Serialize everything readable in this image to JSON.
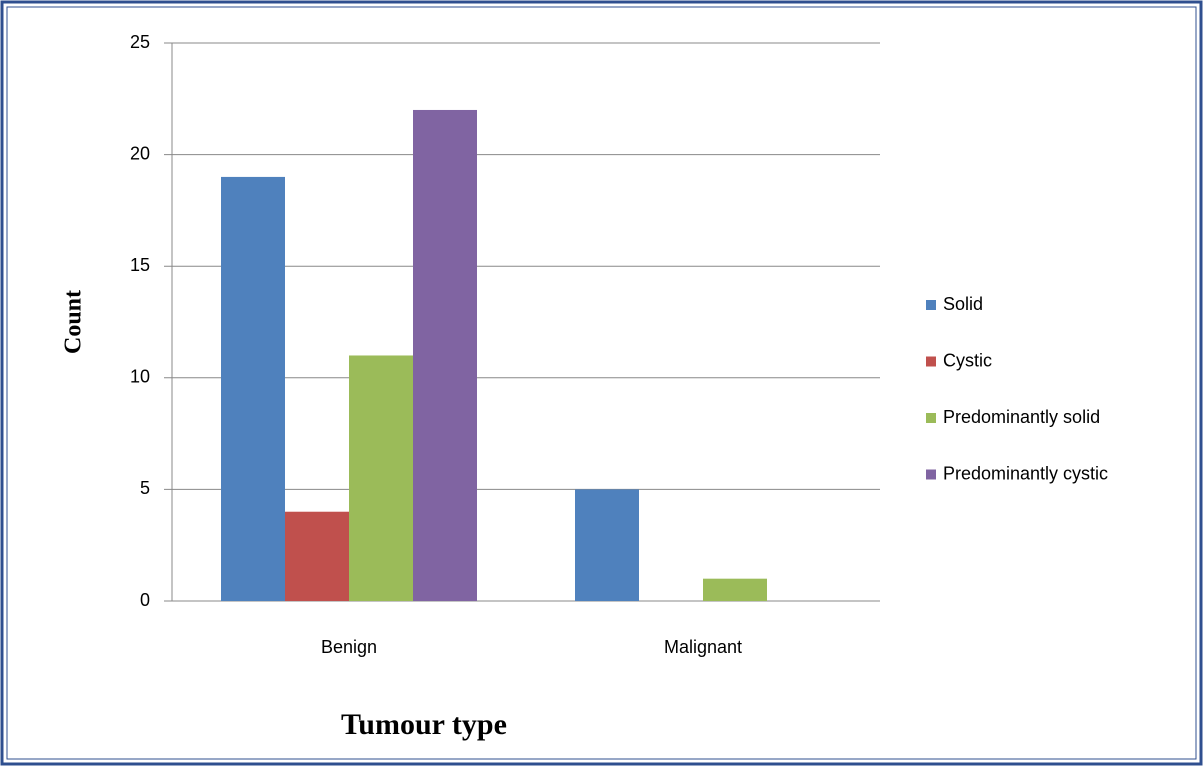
{
  "chart_data": {
    "type": "bar",
    "categories": [
      "Benign",
      "Malignant"
    ],
    "series": [
      {
        "name": "Solid",
        "color": "#4f81bd",
        "values": [
          19,
          5
        ]
      },
      {
        "name": "Cystic",
        "color": "#c0504d",
        "values": [
          4,
          0
        ]
      },
      {
        "name": "Predominantly solid",
        "color": "#9bbb59",
        "values": [
          11,
          1
        ]
      },
      {
        "name": "Predominantly cystic",
        "color": "#8064a2",
        "values": [
          22,
          0
        ]
      }
    ],
    "xlabel": "Tumour type",
    "ylabel": "Count",
    "ylim": [
      0,
      25
    ],
    "yticks": [
      0,
      5,
      10,
      15,
      20,
      25
    ],
    "grid": true,
    "legend": "right"
  }
}
